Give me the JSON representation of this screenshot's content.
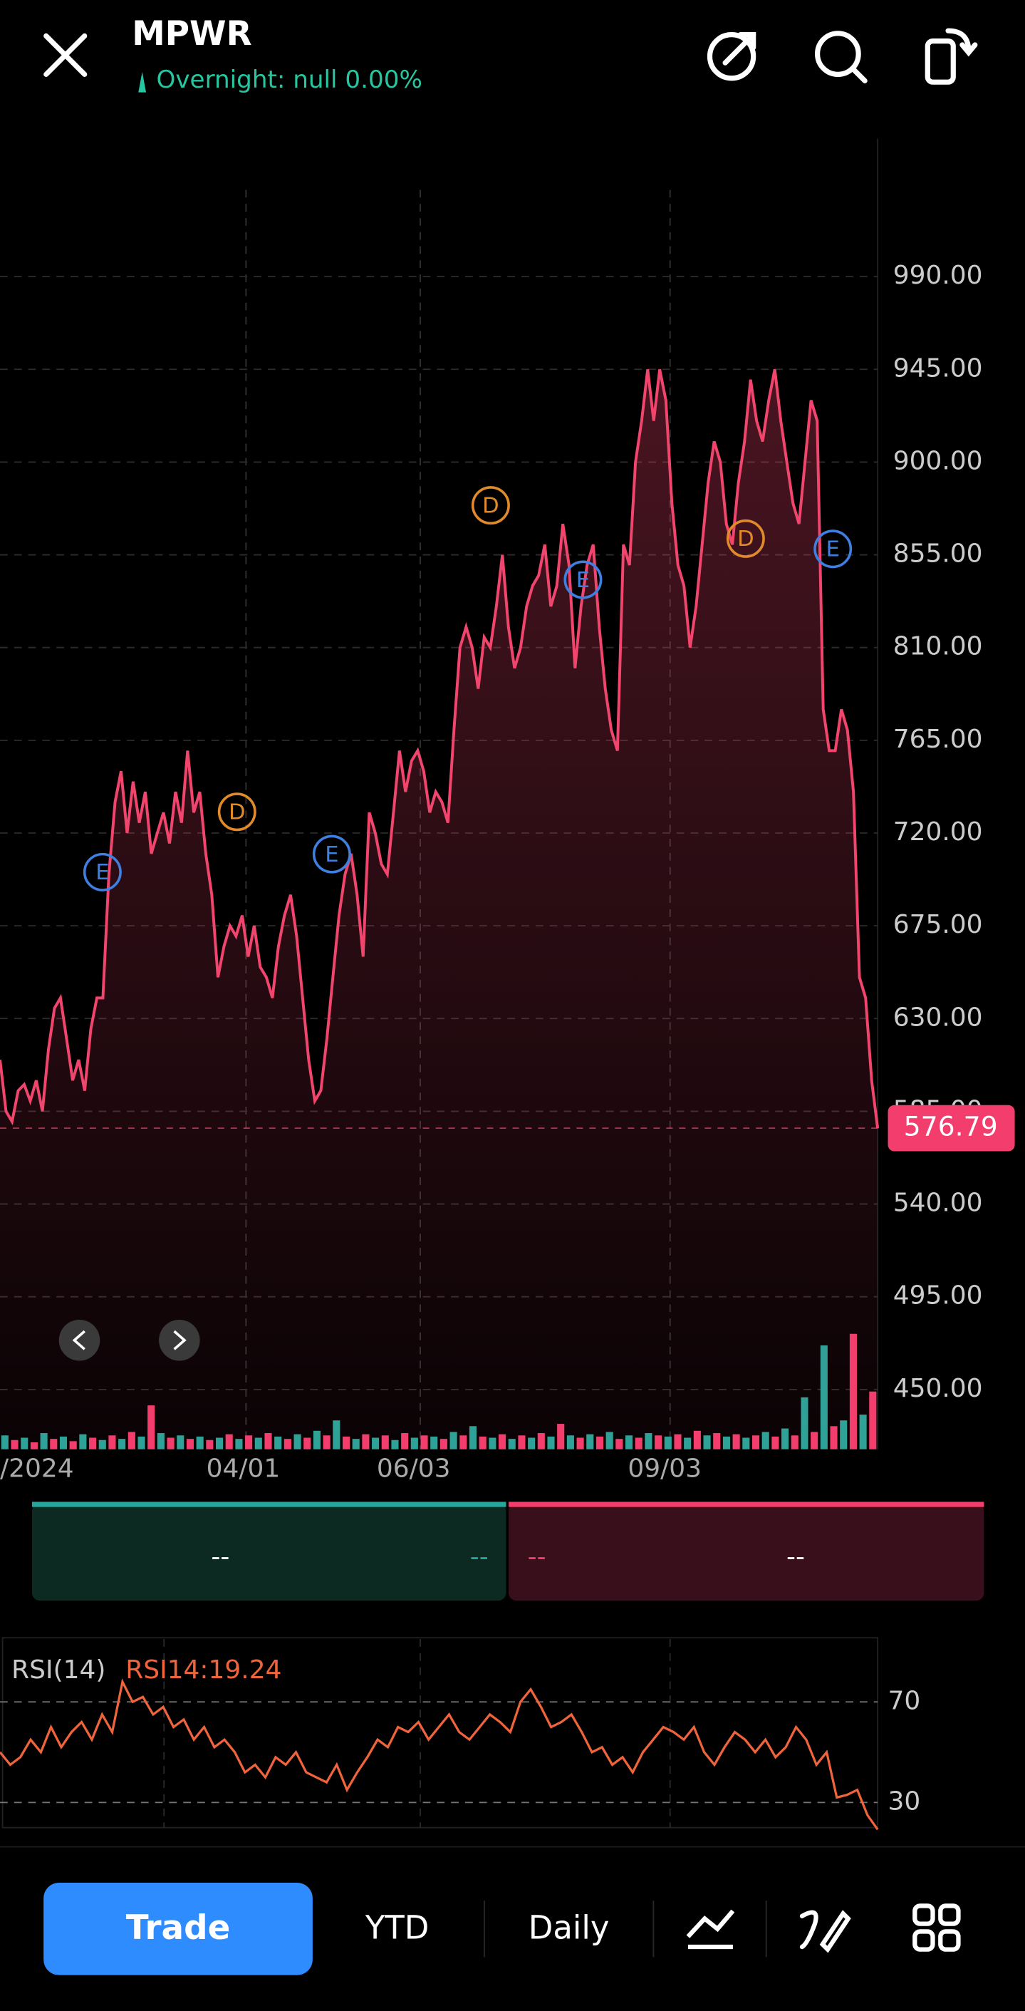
{
  "header": {
    "symbol": "MPWR",
    "overnight": "Overnight: null 0.00%"
  },
  "chart_data": {
    "type": "line",
    "x_labels": [
      "/2024",
      "04/01",
      "06/03",
      "09/03"
    ],
    "series": [
      {
        "name": "MPWR",
        "color": "#f2456e",
        "values": [
          610,
          585,
          580,
          595,
          598,
          590,
          600,
          585,
          615,
          635,
          640,
          620,
          600,
          610,
          595,
          625,
          640,
          640,
          700,
          735,
          750,
          720,
          745,
          725,
          740,
          710,
          720,
          730,
          715,
          740,
          725,
          760,
          730,
          740,
          710,
          690,
          650,
          665,
          675,
          670,
          680,
          660,
          675,
          655,
          650,
          640,
          665,
          680,
          690,
          670,
          640,
          610,
          590,
          595,
          620,
          650,
          680,
          700,
          710,
          690,
          660,
          730,
          720,
          705,
          700,
          730,
          760,
          740,
          755,
          760,
          750,
          730,
          740,
          735,
          725,
          770,
          810,
          820,
          810,
          790,
          815,
          810,
          830,
          855,
          820,
          800,
          810,
          830,
          840,
          845,
          860,
          830,
          840,
          870,
          850,
          800,
          830,
          850,
          860,
          820,
          790,
          770,
          760,
          860,
          850,
          900,
          920,
          945,
          920,
          945,
          930,
          880,
          850,
          840,
          810,
          830,
          860,
          890,
          910,
          900,
          870,
          860,
          890,
          910,
          940,
          920,
          910,
          930,
          945,
          920,
          900,
          880,
          870,
          900,
          930,
          920,
          780,
          760,
          760,
          780,
          770,
          740,
          650,
          640,
          600,
          576.79
        ]
      }
    ],
    "ylim": [
      421,
      1057
    ],
    "yticks": [
      {
        "value": 450,
        "label": "450.00"
      },
      {
        "value": 495,
        "label": "495.00"
      },
      {
        "value": 540,
        "label": "540.00"
      },
      {
        "value": 585,
        "label": "585.00"
      },
      {
        "value": 630,
        "label": "630.00"
      },
      {
        "value": 675,
        "label": "675.00"
      },
      {
        "value": 720,
        "label": "720.00"
      },
      {
        "value": 765,
        "label": "765.00"
      },
      {
        "value": 810,
        "label": "810.00"
      },
      {
        "value": 855,
        "label": "855.00"
      },
      {
        "value": 900,
        "label": "900.00"
      },
      {
        "value": 945,
        "label": "945.00"
      },
      {
        "value": 990,
        "label": "990.00"
      }
    ],
    "grid": true,
    "events": [
      "E",
      "D",
      "E",
      "D",
      "E",
      "D",
      "E"
    ],
    "volume": {
      "colors": [
        "#26a69a",
        "#f23d6d"
      ],
      "values": [
        12,
        8,
        10,
        6,
        14,
        9,
        11,
        7,
        13,
        10,
        8,
        12,
        9,
        15,
        11,
        38,
        14,
        10,
        12,
        9,
        11,
        8,
        10,
        13,
        9,
        12,
        10,
        14,
        11,
        9,
        13,
        10,
        16,
        12,
        25,
        11,
        9,
        13,
        10,
        12,
        8,
        14,
        10,
        12,
        11,
        9,
        15,
        12,
        20,
        11,
        10,
        13,
        9,
        12,
        10,
        14,
        11,
        22,
        12,
        10,
        13,
        11,
        15,
        9,
        12,
        10,
        14,
        12,
        11,
        13,
        10,
        16,
        12,
        14,
        11,
        13,
        10,
        12,
        15,
        11,
        18,
        12,
        45,
        15,
        90,
        20,
        25,
        100,
        30,
        50
      ]
    },
    "buttons": [
      "--",
      "--",
      "--",
      "--"
    ],
    "rsi": {
      "title": "RSI(14)",
      "label": "RSI14:19.24",
      "color": "#f0643c",
      "ylim": [
        20,
        95
      ],
      "yticks": [
        30,
        70
      ],
      "values": [
        50,
        45,
        48,
        55,
        50,
        60,
        52,
        58,
        62,
        55,
        65,
        58,
        78,
        70,
        72,
        65,
        68,
        60,
        63,
        55,
        60,
        52,
        55,
        50,
        42,
        45,
        40,
        48,
        45,
        50,
        42,
        40,
        38,
        45,
        35,
        42,
        48,
        55,
        52,
        60,
        58,
        62,
        55,
        60,
        65,
        58,
        55,
        60,
        65,
        62,
        58,
        70,
        75,
        68,
        60,
        62,
        65,
        58,
        50,
        52,
        45,
        48,
        42,
        50,
        55,
        60,
        58,
        55,
        60,
        50,
        45,
        52,
        58,
        55,
        50,
        55,
        48,
        52,
        60,
        55,
        45,
        50,
        32,
        33,
        35,
        25,
        19.24
      ]
    }
  },
  "nav": {
    "trade": "Trade",
    "range": "YTD",
    "interval": "Daily"
  }
}
